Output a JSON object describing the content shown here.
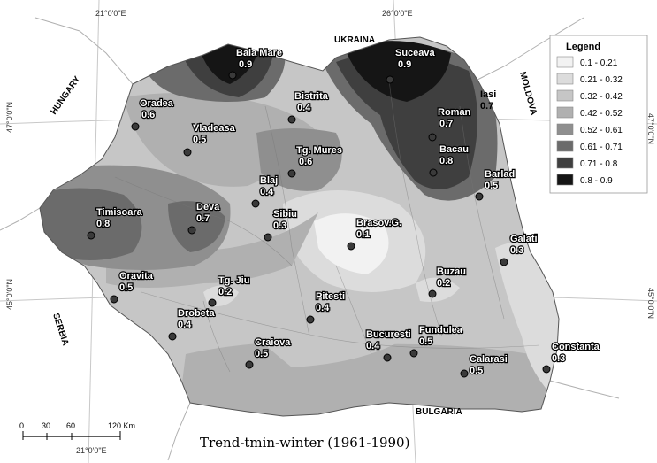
{
  "map": {
    "title": "Trend-tmin-winter (1961-1990)",
    "legend": {
      "title": "Legend",
      "classes": [
        {
          "label": "0.1 - 0.21",
          "color": "#f2f2f2"
        },
        {
          "label": "0.21 - 0.32",
          "color": "#dcdcdc"
        },
        {
          "label": "0.32 - 0.42",
          "color": "#c6c6c6"
        },
        {
          "label": "0.42 - 0.52",
          "color": "#b0b0b0"
        },
        {
          "label": "0.52 - 0.61",
          "color": "#8f8f8f"
        },
        {
          "label": "0.61 - 0.71",
          "color": "#6b6b6b"
        },
        {
          "label": "0.71 - 0.8",
          "color": "#3f3f3f"
        },
        {
          "label": "0.8 - 0.9",
          "color": "#151515"
        }
      ]
    },
    "countries": [
      "UKRAINA",
      "MOLDOVA",
      "HUNGARY",
      "SERBIA",
      "BULGARIA"
    ],
    "coordinates": {
      "top_21": "21°0'0\"E",
      "top_26": "26°0'0\"E",
      "bottom_21": "21°0'0\"E",
      "left_47": "47°0'0\"N",
      "left_45": "45°0'0\"N",
      "right_47": "47°0'0\"N",
      "right_45": "45°0'0\"N"
    },
    "scale": {
      "ticks": [
        "0",
        "30",
        "60",
        "120 Km"
      ]
    },
    "stations": [
      {
        "name": "Baia Mare",
        "value": "0.9"
      },
      {
        "name": "Suceava",
        "value": "0.9"
      },
      {
        "name": "Iasi",
        "value": "0.7"
      },
      {
        "name": "Oradea",
        "value": "0.6"
      },
      {
        "name": "Bistrita",
        "value": "0.4"
      },
      {
        "name": "Roman",
        "value": "0.7"
      },
      {
        "name": "Vladeasa",
        "value": "0.5"
      },
      {
        "name": "Tg. Mures",
        "value": "0.6"
      },
      {
        "name": "Bacau",
        "value": "0.8"
      },
      {
        "name": "Barlad",
        "value": "0.5"
      },
      {
        "name": "Blaj",
        "value": "0.4"
      },
      {
        "name": "Deva",
        "value": "0.7"
      },
      {
        "name": "Timisoara",
        "value": "0.8"
      },
      {
        "name": "Sibiu",
        "value": "0.3"
      },
      {
        "name": "Brasov.G.",
        "value": "0.1"
      },
      {
        "name": "Galati",
        "value": "0.3"
      },
      {
        "name": "Oravita",
        "value": "0.5"
      },
      {
        "name": "Tg. Jiu",
        "value": "0.2"
      },
      {
        "name": "Buzau",
        "value": "0.2"
      },
      {
        "name": "Drobeta",
        "value": "0.4"
      },
      {
        "name": "Pitesti",
        "value": "0.4"
      },
      {
        "name": "Craiova",
        "value": "0.5"
      },
      {
        "name": "Bucuresti",
        "value": "0.4"
      },
      {
        "name": "Fundulea",
        "value": "0.5"
      },
      {
        "name": "Constanta",
        "value": "0.3"
      },
      {
        "name": "Calarasi",
        "value": "0.5"
      }
    ]
  }
}
